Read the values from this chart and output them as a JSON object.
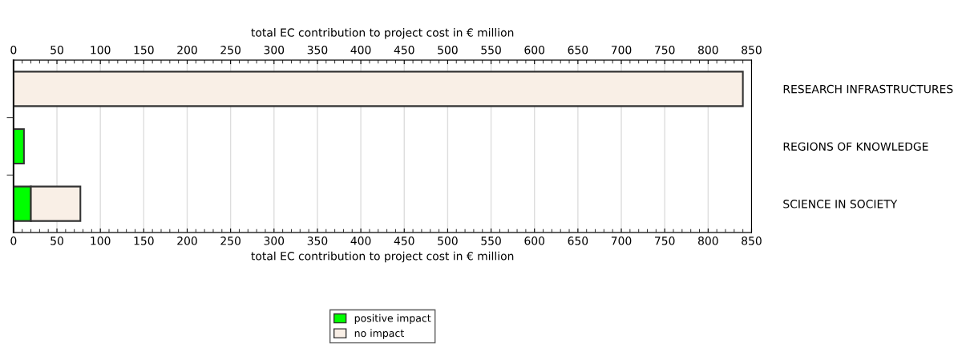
{
  "chart_data": {
    "type": "bar",
    "orientation": "horizontal",
    "stacked": true,
    "categories": [
      "RESEARCH INFRASTRUCTURES",
      "REGIONS OF KNOWLEDGE",
      "SCIENCE IN SOCIETY"
    ],
    "series": [
      {
        "name": "positive impact",
        "color": "#00ff00",
        "values": [
          null,
          12,
          20
        ]
      },
      {
        "name": "no impact",
        "color": "#f9efe6",
        "values": [
          840,
          null,
          57
        ]
      }
    ],
    "xlabel": "total EC contribution to project cost in € million",
    "x2label": "total EC contribution to project cost in € million",
    "xlim": [
      0,
      850
    ],
    "xticks": [
      0,
      50,
      100,
      150,
      200,
      250,
      300,
      350,
      400,
      450,
      500,
      550,
      600,
      650,
      700,
      750,
      800,
      850
    ],
    "x2lim": [
      0,
      850
    ],
    "x2ticks": [
      0,
      50,
      100,
      150,
      200,
      250,
      300,
      350,
      400,
      450,
      500,
      550,
      600,
      650,
      700,
      750,
      800,
      850
    ],
    "grid": "x",
    "legend": "bottom"
  }
}
